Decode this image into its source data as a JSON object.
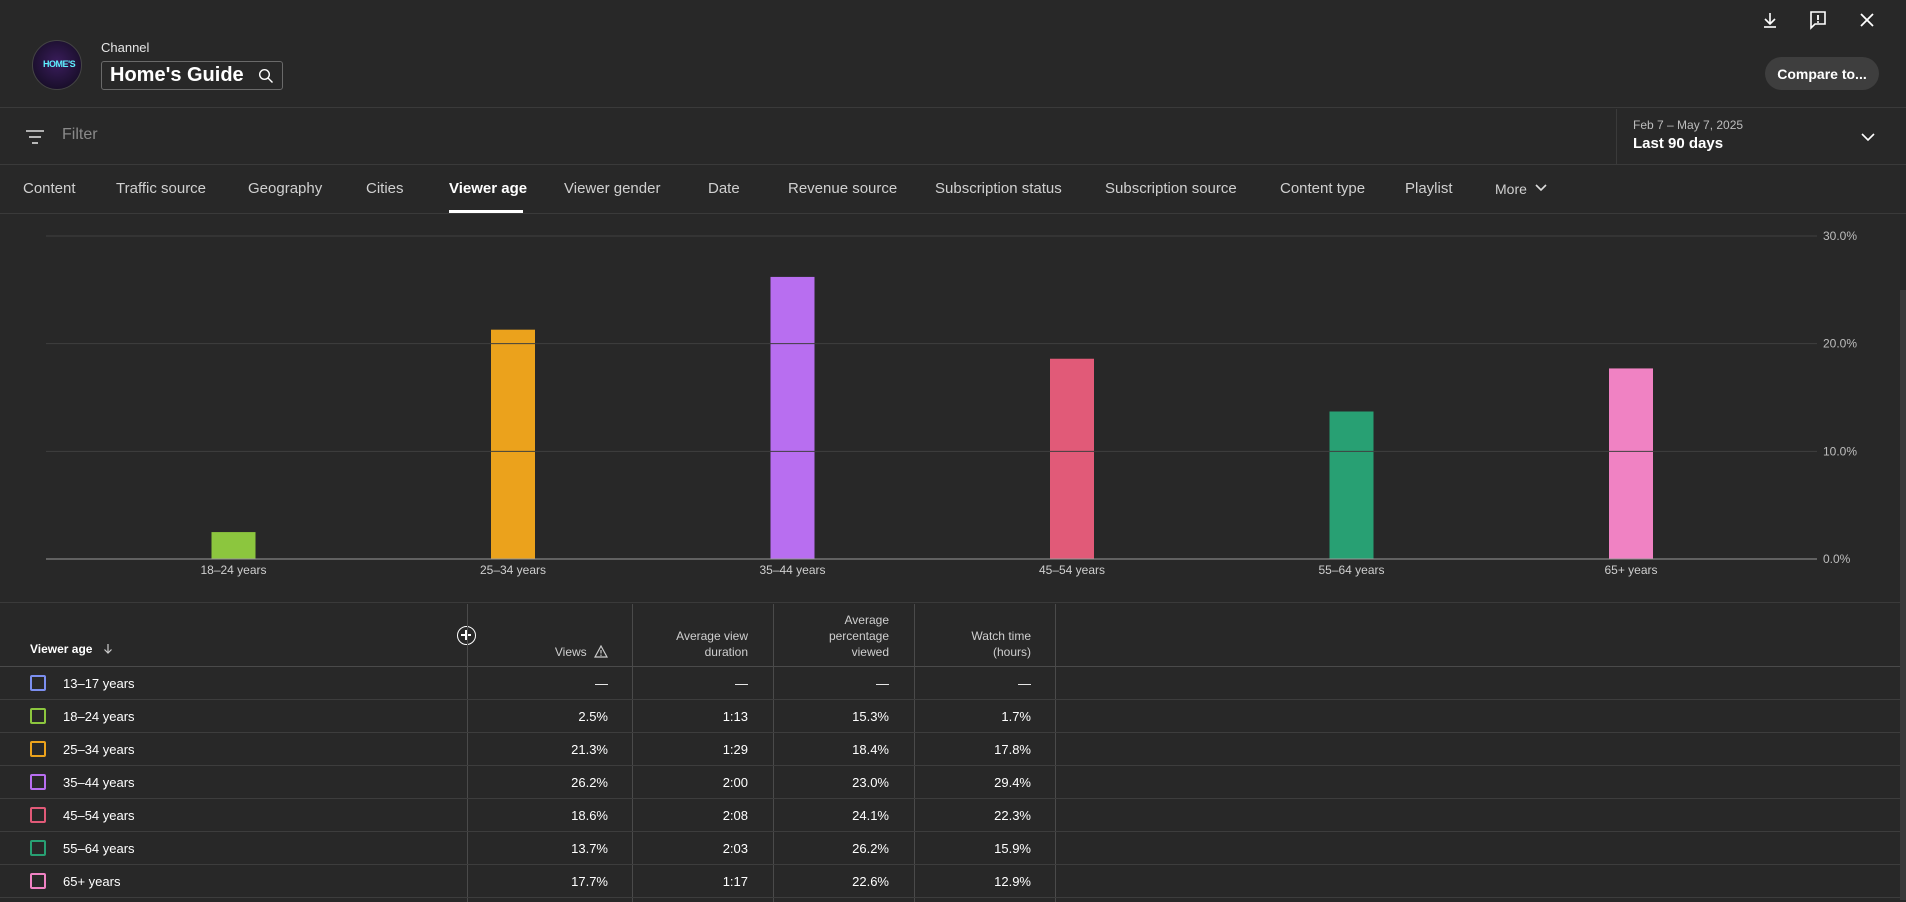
{
  "header": {
    "channel_label": "Channel",
    "channel_name": "Home's Guide",
    "avatar_text": "HOME'S",
    "compare_label": "Compare to..."
  },
  "filter": {
    "placeholder": "Filter",
    "date_range": "Feb 7 – May 7, 2025",
    "date_label": "Last 90 days"
  },
  "tabs": [
    {
      "label": "Content"
    },
    {
      "label": "Traffic source"
    },
    {
      "label": "Geography"
    },
    {
      "label": "Cities"
    },
    {
      "label": "Viewer age",
      "active": true
    },
    {
      "label": "Viewer gender"
    },
    {
      "label": "Date"
    },
    {
      "label": "Revenue source"
    },
    {
      "label": "Subscription status"
    },
    {
      "label": "Subscription source"
    },
    {
      "label": "Content type"
    },
    {
      "label": "Playlist"
    },
    {
      "label": "More"
    }
  ],
  "chart_data": {
    "type": "bar",
    "categories": [
      "18–24 years",
      "25–34 years",
      "35–44 years",
      "45–54 years",
      "55–64 years",
      "65+ years"
    ],
    "values": [
      2.5,
      21.3,
      26.2,
      18.6,
      13.7,
      17.7
    ],
    "colors": [
      "#8cc63e",
      "#eba21c",
      "#b86ef0",
      "#e15a78",
      "#28a073",
      "#f082c3"
    ],
    "ylim": [
      0,
      30
    ],
    "yticks": [
      "0.0%",
      "10.0%",
      "20.0%",
      "30.0%"
    ],
    "ytick_values": [
      0,
      10,
      20,
      30
    ],
    "grid": true
  },
  "table": {
    "headers": {
      "dimension": "Viewer age",
      "views": "Views",
      "avg_view_duration": [
        "Average view",
        "duration"
      ],
      "avg_pct_viewed": [
        "Average",
        "percentage",
        "viewed"
      ],
      "watch_time": [
        "Watch time",
        "(hours)"
      ]
    },
    "rows": [
      {
        "label": "13–17 years",
        "color": "#7c8ff0",
        "views": "—",
        "duration": "—",
        "pct": "—",
        "watch": "—"
      },
      {
        "label": "18–24 years",
        "color": "#8cc63e",
        "views": "2.5%",
        "duration": "1:13",
        "pct": "15.3%",
        "watch": "1.7%"
      },
      {
        "label": "25–34 years",
        "color": "#eba21c",
        "views": "21.3%",
        "duration": "1:29",
        "pct": "18.4%",
        "watch": "17.8%"
      },
      {
        "label": "35–44 years",
        "color": "#b86ef0",
        "views": "26.2%",
        "duration": "2:00",
        "pct": "23.0%",
        "watch": "29.4%"
      },
      {
        "label": "45–54 years",
        "color": "#e15a78",
        "views": "18.6%",
        "duration": "2:08",
        "pct": "24.1%",
        "watch": "22.3%"
      },
      {
        "label": "55–64 years",
        "color": "#28a073",
        "views": "13.7%",
        "duration": "2:03",
        "pct": "26.2%",
        "watch": "15.9%"
      },
      {
        "label": "65+ years",
        "color": "#f082c3",
        "views": "17.7%",
        "duration": "1:17",
        "pct": "22.6%",
        "watch": "12.9%"
      }
    ]
  }
}
